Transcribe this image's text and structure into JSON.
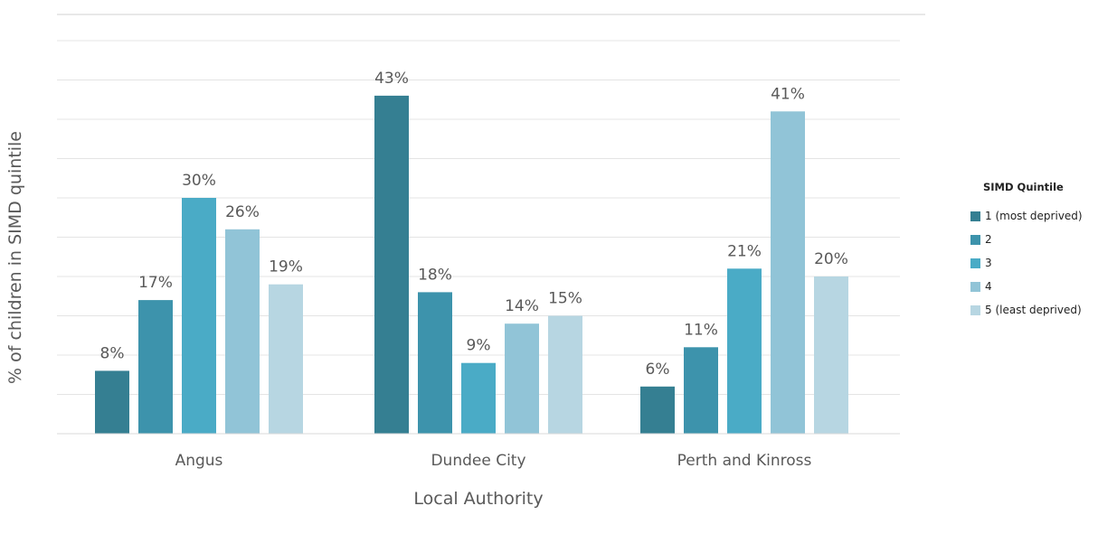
{
  "chart_data": {
    "type": "bar",
    "categories": [
      "Angus",
      "Dundee City",
      "Perth and Kinross"
    ],
    "series": [
      {
        "name": "1 (most deprived)",
        "values": [
          8,
          43,
          6
        ],
        "labels": [
          "8%",
          "43%",
          "6%"
        ],
        "color": "#357f92"
      },
      {
        "name": "2",
        "values": [
          17,
          18,
          11
        ],
        "labels": [
          "17%",
          "18%",
          "11%"
        ],
        "color": "#3d93ac"
      },
      {
        "name": "3",
        "values": [
          30,
          9,
          21
        ],
        "labels": [
          "30%",
          "9%",
          "21%"
        ],
        "color": "#4aabc6"
      },
      {
        "name": "4",
        "values": [
          26,
          14,
          41
        ],
        "labels": [
          "26%",
          "14%",
          "41%"
        ],
        "color": "#91c4d7"
      },
      {
        "name": "5 (least deprived)",
        "values": [
          19,
          15,
          20
        ],
        "labels": [
          "19%",
          "15%",
          "20%"
        ],
        "color": "#b7d6e2"
      }
    ],
    "xlabel": "Local Authority",
    "ylabel": "% of children in SIMD quintile",
    "ylim": [
      0,
      50
    ],
    "grid": true,
    "legend_title": "SIMD Quintile",
    "legend_position": "right"
  }
}
